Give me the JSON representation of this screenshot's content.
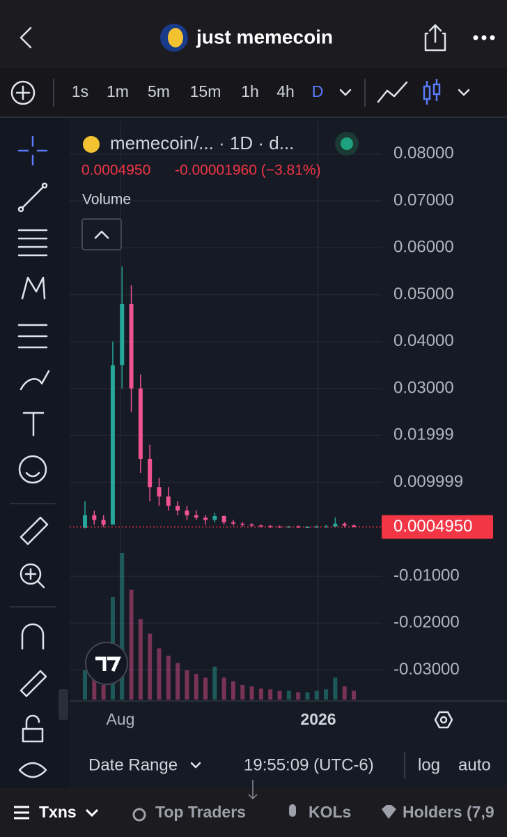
{
  "header": {
    "title": "just memecoin"
  },
  "timeframes": [
    "1s",
    "1m",
    "5m",
    "15m",
    "1h",
    "4h",
    "D"
  ],
  "active_timeframe": 6,
  "chart": {
    "legend": "memecoin/... · 1D · d...",
    "price": "0.0004950",
    "change": "-0.00001960 (−3.81%)",
    "volume_label": "Volume",
    "current_price": 0.000495,
    "current_price_label": "0.0004950",
    "ylim": [
      -0.0366,
      0.0868
    ],
    "yticks": [
      {
        "value": 0.08,
        "label": "0.08000"
      },
      {
        "value": 0.07,
        "label": "0.07000"
      },
      {
        "value": 0.06,
        "label": "0.06000"
      },
      {
        "value": 0.05,
        "label": "0.05000"
      },
      {
        "value": 0.04,
        "label": "0.04000"
      },
      {
        "value": 0.03,
        "label": "0.03000"
      },
      {
        "value": 0.02,
        "label": "0.01999"
      },
      {
        "value": 0.01,
        "label": "0.009999"
      },
      {
        "value": -0.01,
        "label": "-0.01000"
      },
      {
        "value": -0.02,
        "label": "-0.02000"
      },
      {
        "value": -0.03,
        "label": "-0.03000"
      }
    ],
    "x_labels": [
      "Aug",
      "2026"
    ],
    "up_color": "#26a69a",
    "down_color": "#ef5390",
    "candles": [
      [
        0.0003,
        0.006,
        0.0002,
        0.003
      ],
      [
        0.003,
        0.004,
        0.001,
        0.002
      ],
      [
        0.002,
        0.003,
        0.0005,
        0.001
      ],
      [
        0.001,
        0.04,
        0.001,
        0.035
      ],
      [
        0.035,
        0.056,
        0.03,
        0.048
      ],
      [
        0.048,
        0.052,
        0.025,
        0.03
      ],
      [
        0.03,
        0.033,
        0.012,
        0.015
      ],
      [
        0.015,
        0.018,
        0.006,
        0.009
      ],
      [
        0.009,
        0.011,
        0.005,
        0.007
      ],
      [
        0.007,
        0.009,
        0.004,
        0.005
      ],
      [
        0.005,
        0.006,
        0.003,
        0.004
      ],
      [
        0.004,
        0.005,
        0.002,
        0.003
      ],
      [
        0.003,
        0.004,
        0.002,
        0.0025
      ],
      [
        0.0025,
        0.003,
        0.001,
        0.002
      ],
      [
        0.002,
        0.0035,
        0.0015,
        0.0028
      ],
      [
        0.0028,
        0.003,
        0.001,
        0.0015
      ],
      [
        0.0015,
        0.002,
        0.0008,
        0.0012
      ],
      [
        0.0012,
        0.0015,
        0.0006,
        0.001
      ],
      [
        0.001,
        0.0013,
        0.0005,
        0.0008
      ],
      [
        0.0008,
        0.001,
        0.0004,
        0.0007
      ],
      [
        0.0007,
        0.0009,
        0.0003,
        0.0006
      ],
      [
        0.0006,
        0.0008,
        0.0003,
        0.0005
      ],
      [
        0.0005,
        0.0007,
        0.0003,
        0.0006
      ],
      [
        0.0006,
        0.0008,
        0.0003,
        0.0004
      ],
      [
        0.0004,
        0.0007,
        0.0003,
        0.0005
      ],
      [
        0.0005,
        0.0008,
        0.0003,
        0.0006
      ],
      [
        0.0006,
        0.0009,
        0.0004,
        0.0006
      ],
      [
        0.0006,
        0.0025,
        0.0005,
        0.0012
      ],
      [
        0.0012,
        0.0015,
        0.0004,
        0.0008
      ],
      [
        0.0008,
        0.001,
        0.0004,
        0.000495
      ]
    ],
    "volumes": [
      40,
      30,
      20,
      140,
      200,
      150,
      110,
      90,
      70,
      60,
      50,
      40,
      35,
      30,
      45,
      30,
      25,
      20,
      18,
      15,
      14,
      12,
      12,
      10,
      10,
      12,
      14,
      30,
      18,
      12
    ]
  },
  "toolbar": {
    "date_range": "Date Range",
    "time": "19:55:09 (UTC-6)",
    "log": "log",
    "auto": "auto"
  },
  "tabs": [
    "Txns",
    "Top Traders",
    "KOLs",
    "Holders (7,9"
  ]
}
